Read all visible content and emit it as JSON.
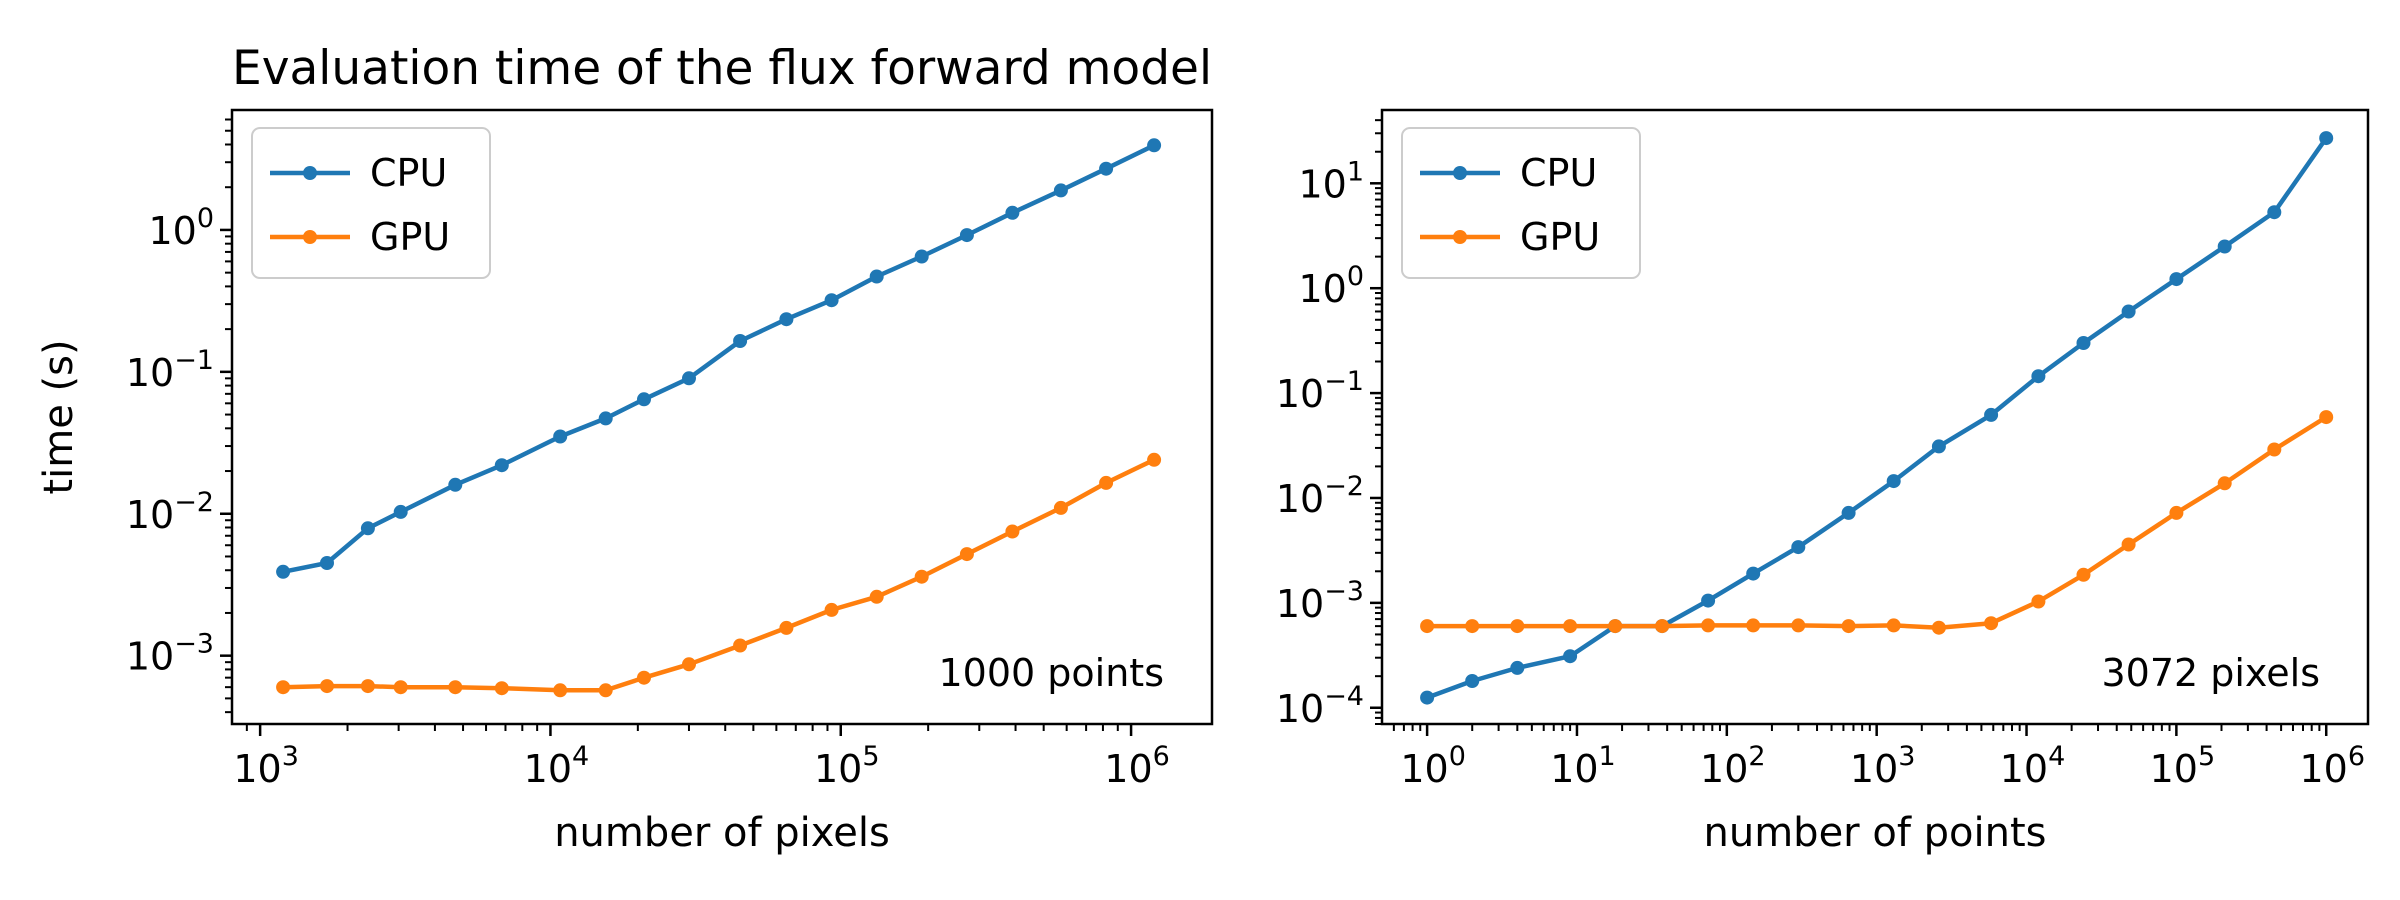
{
  "figure": {
    "title": "Evaluation time of the flux forward model"
  },
  "legend_labels": {
    "cpu": "CPU",
    "gpu": "GPU"
  },
  "colors": {
    "cpu": "#1f77b4",
    "gpu": "#ff7f0e",
    "frame": "#000000",
    "legend_border": "#cccccc"
  },
  "chart_data": [
    {
      "type": "line",
      "title": "Evaluation time of the flux forward model",
      "xlabel": "number of pixels",
      "ylabel": "time (s)",
      "xscale": "log",
      "yscale": "log",
      "xlim": [
        800,
        1900000
      ],
      "ylim": [
        0.00033,
        7
      ],
      "xticks": [
        1000,
        10000,
        100000,
        1000000
      ],
      "xtick_labels": [
        {
          "base": "10",
          "exp": "3"
        },
        {
          "base": "10",
          "exp": "4"
        },
        {
          "base": "10",
          "exp": "5"
        },
        {
          "base": "10",
          "exp": "6"
        }
      ],
      "yticks": [
        0.001,
        0.01,
        0.1,
        1
      ],
      "ytick_labels": [
        {
          "base": "10",
          "exp": "−3"
        },
        {
          "base": "10",
          "exp": "−2"
        },
        {
          "base": "10",
          "exp": "−1"
        },
        {
          "base": "10",
          "exp": "0"
        }
      ],
      "legend_position": "upper-left",
      "annotation": "1000 points",
      "annotation_position": "lower-right",
      "series": [
        {
          "name": "CPU",
          "color": "#1f77b4",
          "x": [
            1200,
            1700,
            2350,
            3050,
            4700,
            6800,
            10800,
            15500,
            21000,
            30000,
            45000,
            65000,
            93000,
            133000,
            190000,
            272000,
            390000,
            573000,
            820000,
            1200000
          ],
          "y": [
            0.0039,
            0.0045,
            0.0079,
            0.0103,
            0.016,
            0.022,
            0.035,
            0.047,
            0.064,
            0.09,
            0.165,
            0.235,
            0.32,
            0.47,
            0.65,
            0.92,
            1.32,
            1.9,
            2.7,
            3.95
          ]
        },
        {
          "name": "GPU",
          "color": "#ff7f0e",
          "x": [
            1200,
            1700,
            2350,
            3050,
            4700,
            6800,
            10800,
            15500,
            21000,
            30000,
            45000,
            65000,
            93000,
            133000,
            190000,
            272000,
            390000,
            573000,
            820000,
            1200000
          ],
          "y": [
            0.0006,
            0.00061,
            0.00061,
            0.0006,
            0.0006,
            0.00059,
            0.00057,
            0.00057,
            0.0007,
            0.00087,
            0.00118,
            0.00157,
            0.0021,
            0.0026,
            0.0036,
            0.0052,
            0.0075,
            0.011,
            0.0165,
            0.024
          ]
        }
      ]
    },
    {
      "type": "line",
      "title": "",
      "xlabel": "number of points",
      "ylabel": "",
      "xscale": "log",
      "yscale": "log",
      "xlim": [
        0.5,
        1900000
      ],
      "ylim": [
        7e-05,
        50
      ],
      "xticks": [
        1,
        10,
        100,
        1000,
        10000,
        100000,
        1000000
      ],
      "xtick_labels": [
        {
          "base": "10",
          "exp": "0"
        },
        {
          "base": "10",
          "exp": "1"
        },
        {
          "base": "10",
          "exp": "2"
        },
        {
          "base": "10",
          "exp": "3"
        },
        {
          "base": "10",
          "exp": "4"
        },
        {
          "base": "10",
          "exp": "5"
        },
        {
          "base": "10",
          "exp": "6"
        }
      ],
      "yticks": [
        0.0001,
        0.001,
        0.01,
        0.1,
        1,
        10
      ],
      "ytick_labels": [
        {
          "base": "10",
          "exp": "−4"
        },
        {
          "base": "10",
          "exp": "−3"
        },
        {
          "base": "10",
          "exp": "−2"
        },
        {
          "base": "10",
          "exp": "−1"
        },
        {
          "base": "10",
          "exp": "0"
        },
        {
          "base": "10",
          "exp": "1"
        }
      ],
      "legend_position": "upper-left",
      "annotation": "3072 pixels",
      "annotation_position": "lower-right",
      "series": [
        {
          "name": "CPU",
          "color": "#1f77b4",
          "x": [
            1,
            2,
            4,
            9,
            18,
            37,
            75,
            150,
            300,
            650,
            1300,
            2600,
            5800,
            12000,
            24000,
            48000,
            100000,
            210000,
            450000,
            1000000
          ],
          "y": [
            0.000125,
            0.00018,
            0.00024,
            0.00031,
            0.0006,
            0.0006,
            0.00105,
            0.0019,
            0.0034,
            0.0072,
            0.0145,
            0.031,
            0.062,
            0.145,
            0.3,
            0.6,
            1.22,
            2.5,
            5.3,
            27
          ]
        },
        {
          "name": "GPU",
          "color": "#ff7f0e",
          "x": [
            1,
            2,
            4,
            9,
            18,
            37,
            75,
            150,
            300,
            650,
            1300,
            2600,
            5800,
            12000,
            24000,
            48000,
            100000,
            210000,
            450000,
            1000000
          ],
          "y": [
            0.0006,
            0.0006,
            0.0006,
            0.0006,
            0.0006,
            0.0006,
            0.00061,
            0.00061,
            0.00061,
            0.0006,
            0.00061,
            0.00058,
            0.00064,
            0.00103,
            0.00185,
            0.0036,
            0.0072,
            0.0138,
            0.029,
            0.059
          ]
        }
      ]
    }
  ]
}
